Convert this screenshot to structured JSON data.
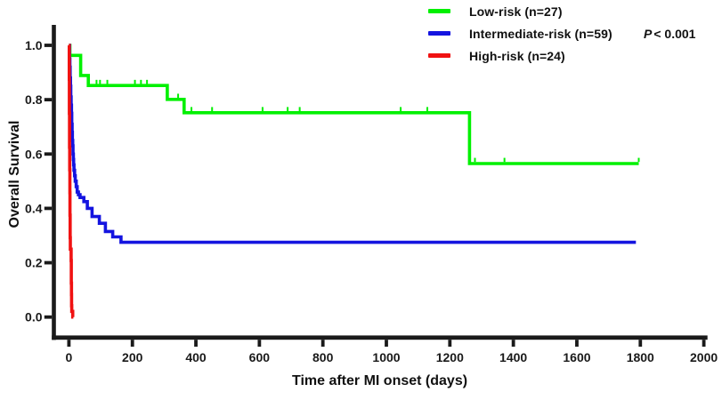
{
  "chart_data": {
    "type": "line",
    "subtype": "kaplan-meier-step-survival",
    "title": "",
    "xlabel": "Time after MI onset (days)",
    "ylabel": "Overall Survival",
    "xlim": [
      0,
      2000
    ],
    "ylim": [
      0.0,
      1.0
    ],
    "x_ticks": [
      0,
      200,
      400,
      600,
      800,
      1000,
      1200,
      1400,
      1600,
      1800,
      2000
    ],
    "y_ticks": [
      0.0,
      0.2,
      0.4,
      0.6,
      0.8,
      1.0
    ],
    "grid": false,
    "legend_position": "top-right",
    "p_value": "P < 0.001",
    "p_prefix": "P",
    "p_rest": "< 0.001",
    "axis_color": "#1a1a1a",
    "series": [
      {
        "name": "Low-risk (n=27)",
        "color": "#00f000",
        "steps": [
          [
            0,
            1.0
          ],
          [
            3,
            0.963
          ],
          [
            37,
            0.889
          ],
          [
            61,
            0.852
          ],
          [
            310,
            0.801
          ],
          [
            363,
            0.752
          ],
          [
            1262,
            0.565
          ],
          [
            1795,
            0.565
          ]
        ],
        "censor_days": [
          87,
          98,
          121,
          208,
          227,
          246,
          344,
          386,
          451,
          610,
          689,
          727,
          1045,
          1129,
          1279,
          1372,
          1795
        ]
      },
      {
        "name": "Intermediate-risk (n=59)",
        "color": "#1414e0",
        "steps": [
          [
            0,
            1.0
          ],
          [
            2,
            0.95
          ],
          [
            3,
            0.92
          ],
          [
            4,
            0.88
          ],
          [
            5,
            0.85
          ],
          [
            6,
            0.81
          ],
          [
            7,
            0.78
          ],
          [
            8,
            0.75
          ],
          [
            9,
            0.71
          ],
          [
            10,
            0.68
          ],
          [
            11,
            0.65
          ],
          [
            12,
            0.63
          ],
          [
            13,
            0.6
          ],
          [
            14,
            0.58
          ],
          [
            15,
            0.56
          ],
          [
            16,
            0.54
          ],
          [
            18,
            0.52
          ],
          [
            20,
            0.5
          ],
          [
            23,
            0.48
          ],
          [
            26,
            0.46
          ],
          [
            30,
            0.45
          ],
          [
            35,
            0.44
          ],
          [
            47,
            0.425
          ],
          [
            58,
            0.4
          ],
          [
            73,
            0.37
          ],
          [
            96,
            0.345
          ],
          [
            115,
            0.315
          ],
          [
            138,
            0.295
          ],
          [
            164,
            0.275
          ],
          [
            1786,
            0.275
          ]
        ],
        "censor_days": []
      },
      {
        "name": "High-risk (n=24)",
        "color": "#f01212",
        "steps": [
          [
            0,
            1.0
          ],
          [
            1,
            0.875
          ],
          [
            1.5,
            0.75
          ],
          [
            2,
            0.625
          ],
          [
            2.5,
            0.542
          ],
          [
            3,
            0.458
          ],
          [
            3.5,
            0.375
          ],
          [
            4,
            0.292
          ],
          [
            4.5,
            0.25
          ],
          [
            7,
            0.208
          ],
          [
            7.5,
            0.125
          ],
          [
            8,
            0.083
          ],
          [
            8.5,
            0.042
          ],
          [
            9,
            0.021
          ],
          [
            12,
            0.0
          ],
          [
            14,
            0.0
          ]
        ],
        "censor_days": []
      }
    ]
  }
}
